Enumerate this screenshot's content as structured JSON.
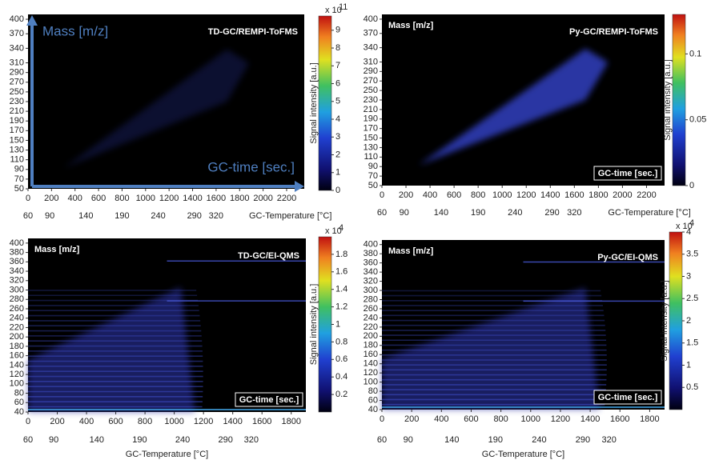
{
  "chart_data": [
    {
      "type": "heatmap",
      "title": "TD-GC/REMPI-ToFMS",
      "y_label": "Mass [m/z]",
      "x_label": "GC-time [sec.]",
      "xlim": [
        0,
        2350
      ],
      "xticks": [
        0,
        200,
        400,
        600,
        800,
        1000,
        1200,
        1400,
        1600,
        1800,
        2000,
        2200
      ],
      "ylim": [
        50,
        410
      ],
      "yticks": [
        50,
        70,
        90,
        110,
        130,
        150,
        170,
        190,
        210,
        230,
        250,
        270,
        290,
        310,
        340,
        370,
        400
      ],
      "x2_label": "GC-Temperature [°C]",
      "x2lim": [
        60,
        335
      ],
      "x2ticks": [
        60,
        90,
        140,
        190,
        240,
        290,
        320
      ],
      "colorbar": {
        "label": "Signal intensity [a.u.]",
        "multiplier": "x 10",
        "exponent": "11",
        "lim": [
          0,
          9.8
        ],
        "ticks": [
          0,
          1,
          2,
          3,
          4,
          5,
          6,
          7,
          8,
          9
        ]
      }
    },
    {
      "type": "heatmap",
      "title": "Py-GC/REMPI-ToFMS",
      "y_label": "Mass [m/z]",
      "x_label": "GC-time [sec.]",
      "xlim": [
        0,
        2350
      ],
      "xticks": [
        0,
        200,
        400,
        600,
        800,
        1000,
        1200,
        1400,
        1600,
        1800,
        2000,
        2200
      ],
      "ylim": [
        50,
        410
      ],
      "yticks": [
        50,
        70,
        90,
        110,
        130,
        150,
        170,
        190,
        210,
        230,
        250,
        270,
        290,
        310,
        340,
        370,
        400
      ],
      "x2_label": "GC-Temperature [°C]",
      "x2lim": [
        60,
        335
      ],
      "x2ticks": [
        60,
        90,
        140,
        190,
        240,
        290,
        320
      ],
      "colorbar": {
        "label": "Signal intensity [a.u.]",
        "lim": [
          0,
          0.13
        ],
        "ticks": [
          0,
          0.05,
          0.1
        ]
      }
    },
    {
      "type": "heatmap",
      "title": "TD-GC/EI-QMS",
      "y_label": "Mass [m/z]",
      "x_label": "GC-time [sec.]",
      "xlim": [
        0,
        1900
      ],
      "xticks": [
        0,
        200,
        400,
        600,
        800,
        1000,
        1200,
        1400,
        1600,
        1800
      ],
      "ylim": [
        40,
        410
      ],
      "yticks": [
        40,
        60,
        80,
        100,
        120,
        140,
        160,
        180,
        200,
        220,
        240,
        260,
        280,
        300,
        320,
        340,
        360,
        380,
        400
      ],
      "x2_label": "GC-Temperature [°C]",
      "x2lim": [
        60,
        335
      ],
      "x2ticks": [
        60,
        90,
        140,
        190,
        240,
        290,
        320
      ],
      "colorbar": {
        "label": "Signal intensity [a.u.]",
        "multiplier": "x 10",
        "exponent": "4",
        "lim": [
          0,
          2
        ],
        "ticks": [
          0.2,
          0.4,
          0.6,
          0.8,
          1,
          1.2,
          1.4,
          1.6,
          1.8
        ]
      }
    },
    {
      "type": "heatmap",
      "title": "Py-GC/EI-QMS",
      "y_label": "Mass [m/z]",
      "x_label": "GC-time [sec.]",
      "xlim": [
        0,
        1900
      ],
      "xticks": [
        0,
        200,
        400,
        600,
        800,
        1000,
        1200,
        1400,
        1600,
        1800
      ],
      "ylim": [
        40,
        410
      ],
      "yticks": [
        40,
        60,
        80,
        100,
        120,
        140,
        160,
        180,
        200,
        220,
        240,
        260,
        280,
        300,
        320,
        340,
        360,
        380,
        400
      ],
      "x2_label": "GC-Temperature [°C]",
      "x2lim": [
        60,
        335
      ],
      "x2ticks": [
        60,
        90,
        140,
        190,
        240,
        290,
        320
      ],
      "colorbar": {
        "label": "Signal intensity [a.u.]",
        "multiplier": "x 10",
        "exponent": "4",
        "lim": [
          0,
          4
        ],
        "ticks": [
          0.5,
          1,
          1.5,
          2,
          2.5,
          3,
          3.5,
          4
        ]
      }
    }
  ]
}
